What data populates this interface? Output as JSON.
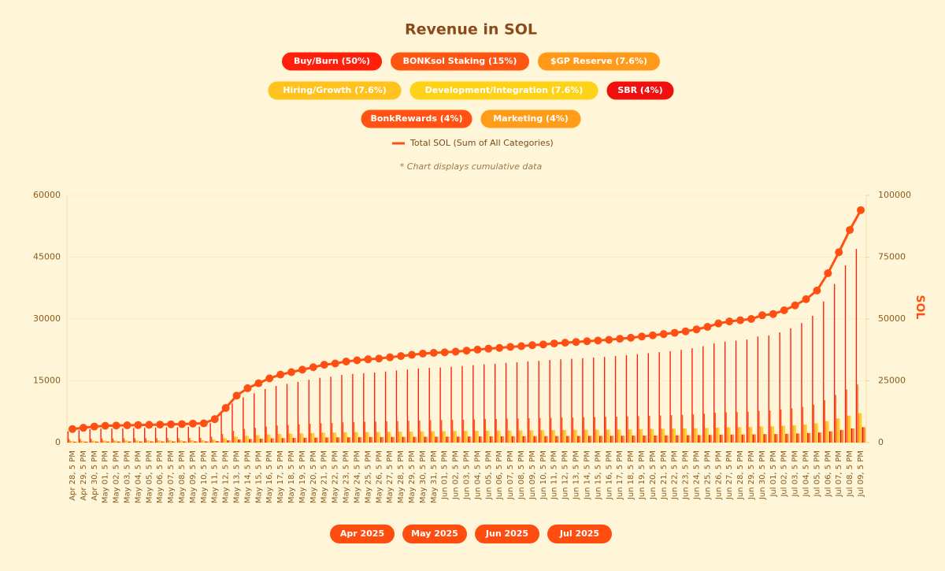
{
  "chart_data": {
    "type": "bar_line",
    "title": "Revenue in SOL",
    "note": "* Chart displays cumulative data",
    "y2label": "SOL",
    "categories": [
      "Apr 28, 5 PM",
      "Apr 29, 5 PM",
      "Apr 30, 5 PM",
      "May 01, 5 PM",
      "May 02, 5 PM",
      "May 03, 5 PM",
      "May 04, 5 PM",
      "May 05, 5 PM",
      "May 06, 5 PM",
      "May 07, 5 PM",
      "May 08, 5 PM",
      "May 09, 5 PM",
      "May 10, 5 PM",
      "May 11, 5 PM",
      "May 12, 5 PM",
      "May 13, 5 PM",
      "May 14, 5 PM",
      "May 15, 5 PM",
      "May 16, 5 PM",
      "May 17, 5 PM",
      "May 18, 5 PM",
      "May 19, 5 PM",
      "May 20, 5 PM",
      "May 21, 5 PM",
      "May 22, 5 PM",
      "May 23, 5 PM",
      "May 24, 5 PM",
      "May 25, 5 PM",
      "May 26, 5 PM",
      "May 27, 5 PM",
      "May 28, 5 PM",
      "May 29, 5 PM",
      "May 30, 5 PM",
      "May 31, 5 PM",
      "Jun 01, 5 PM",
      "Jun 02, 5 PM",
      "Jun 03, 5 PM",
      "Jun 04, 5 PM",
      "Jun 05, 5 PM",
      "Jun 06, 5 PM",
      "Jun 07, 5 PM",
      "Jun 08, 5 PM",
      "Jun 09, 5 PM",
      "Jun 10, 5 PM",
      "Jun 11, 5 PM",
      "Jun 12, 5 PM",
      "Jun 13, 5 PM",
      "Jun 14, 5 PM",
      "Jun 15, 5 PM",
      "Jun 16, 5 PM",
      "Jun 17, 5 PM",
      "Jun 18, 5 PM",
      "Jun 19, 5 PM",
      "Jun 20, 5 PM",
      "Jun 21, 5 PM",
      "Jun 22, 5 PM",
      "Jun 23, 5 PM",
      "Jun 24, 5 PM",
      "Jun 25, 5 PM",
      "Jun 26, 5 PM",
      "Jun 27, 5 PM",
      "Jun 28, 5 PM",
      "Jun 29, 5 PM",
      "Jun 30, 5 PM",
      "Jul 01, 5 PM",
      "Jul 02, 5 PM",
      "Jul 03, 5 PM",
      "Jul 04, 5 PM",
      "Jul 05, 5 PM",
      "Jul 06, 5 PM",
      "Jul 07, 5 PM",
      "Jul 08, 5 PM",
      "Jul 09, 5 PM"
    ],
    "series": [
      {
        "name": "Buy/Burn (50%)",
        "color": "#ff1f0a",
        "values": [
          2750,
          3000,
          3250,
          3400,
          3450,
          3500,
          3550,
          3600,
          3650,
          3700,
          3750,
          3850,
          3900,
          4750,
          7000,
          9500,
          11000,
          12000,
          13000,
          13750,
          14250,
          14750,
          15250,
          15750,
          16000,
          16400,
          16650,
          16850,
          17000,
          17250,
          17500,
          17750,
          18000,
          18150,
          18250,
          18400,
          18600,
          18800,
          19000,
          19150,
          19350,
          19500,
          19700,
          19850,
          20050,
          20200,
          20350,
          20500,
          20650,
          20800,
          21000,
          21200,
          21450,
          21700,
          21950,
          22200,
          22500,
          22900,
          23400,
          24100,
          24500,
          24750,
          25000,
          25750,
          26000,
          26750,
          27750,
          29000,
          30750,
          34250,
          38500,
          43000,
          47000
        ]
      },
      {
        "name": "BONKsol Staking (15%)",
        "color": "#ff5514",
        "values": [
          825,
          900,
          975,
          1020,
          1035,
          1050,
          1065,
          1080,
          1095,
          1110,
          1125,
          1155,
          1170,
          1425,
          2100,
          2850,
          3300,
          3600,
          3900,
          4125,
          4275,
          4425,
          4575,
          4725,
          4800,
          4920,
          4995,
          5055,
          5100,
          5175,
          5250,
          5325,
          5400,
          5445,
          5475,
          5520,
          5580,
          5640,
          5700,
          5745,
          5805,
          5850,
          5910,
          5955,
          6015,
          6060,
          6105,
          6150,
          6195,
          6240,
          6300,
          6360,
          6435,
          6510,
          6585,
          6660,
          6750,
          6870,
          7020,
          7230,
          7350,
          7425,
          7500,
          7725,
          7800,
          8025,
          8325,
          8700,
          9225,
          10275,
          11550,
          12900,
          14100
        ]
      },
      {
        "name": "$GP Reserve (7.6%)",
        "color": "#ff9a1a",
        "values": [
          420,
          460,
          490,
          520,
          520,
          530,
          540,
          550,
          550,
          560,
          570,
          590,
          590,
          720,
          1060,
          1440,
          1670,
          1820,
          1980,
          2090,
          2170,
          2240,
          2320,
          2390,
          2430,
          2490,
          2530,
          2560,
          2580,
          2620,
          2660,
          2700,
          2740,
          2760,
          2770,
          2800,
          2830,
          2860,
          2890,
          2910,
          2940,
          2960,
          2990,
          3020,
          3050,
          3070,
          3090,
          3120,
          3140,
          3160,
          3190,
          3220,
          3260,
          3300,
          3340,
          3370,
          3420,
          3480,
          3560,
          3660,
          3720,
          3760,
          3800,
          3910,
          3950,
          4070,
          4220,
          4410,
          4670,
          5210,
          5850,
          6540,
          7140
        ]
      },
      {
        "name": "Hiring/Growth (7.6%)",
        "color": "#ffc21f",
        "values": [
          420,
          460,
          490,
          520,
          520,
          530,
          540,
          550,
          550,
          560,
          570,
          590,
          590,
          720,
          1060,
          1440,
          1670,
          1820,
          1980,
          2090,
          2170,
          2240,
          2320,
          2390,
          2430,
          2490,
          2530,
          2560,
          2580,
          2620,
          2660,
          2700,
          2740,
          2760,
          2770,
          2800,
          2830,
          2860,
          2890,
          2910,
          2940,
          2960,
          2990,
          3020,
          3050,
          3070,
          3090,
          3120,
          3140,
          3160,
          3190,
          3220,
          3260,
          3300,
          3340,
          3370,
          3420,
          3480,
          3560,
          3660,
          3720,
          3760,
          3800,
          3910,
          3950,
          4070,
          4220,
          4410,
          4670,
          5210,
          5850,
          6540,
          7140
        ]
      },
      {
        "name": "Development/Integration (7.6%)",
        "color": "#ffd21a",
        "values": [
          420,
          460,
          490,
          520,
          520,
          530,
          540,
          550,
          550,
          560,
          570,
          590,
          590,
          720,
          1060,
          1440,
          1670,
          1820,
          1980,
          2090,
          2170,
          2240,
          2320,
          2390,
          2430,
          2490,
          2530,
          2560,
          2580,
          2620,
          2660,
          2700,
          2740,
          2760,
          2770,
          2800,
          2830,
          2860,
          2890,
          2910,
          2940,
          2960,
          2990,
          3020,
          3050,
          3070,
          3090,
          3120,
          3140,
          3160,
          3190,
          3220,
          3260,
          3300,
          3340,
          3370,
          3420,
          3480,
          3560,
          3660,
          3720,
          3760,
          3800,
          3910,
          3950,
          4070,
          4220,
          4410,
          4670,
          5210,
          5850,
          6540,
          7140
        ]
      },
      {
        "name": "SBR (4%)",
        "color": "#f01010",
        "values": [
          220,
          240,
          260,
          270,
          280,
          280,
          280,
          290,
          290,
          300,
          300,
          310,
          310,
          380,
          560,
          760,
          880,
          960,
          1040,
          1100,
          1140,
          1180,
          1220,
          1260,
          1280,
          1310,
          1330,
          1350,
          1360,
          1380,
          1400,
          1420,
          1440,
          1450,
          1460,
          1470,
          1490,
          1500,
          1520,
          1530,
          1550,
          1560,
          1580,
          1590,
          1600,
          1620,
          1630,
          1640,
          1650,
          1660,
          1680,
          1700,
          1720,
          1740,
          1760,
          1780,
          1800,
          1830,
          1870,
          1930,
          1960,
          1980,
          2000,
          2060,
          2080,
          2140,
          2220,
          2320,
          2460,
          2740,
          3080,
          3440,
          3760
        ]
      },
      {
        "name": "BonkRewards (4%)",
        "color": "#ff5214",
        "values": [
          220,
          240,
          260,
          270,
          280,
          280,
          280,
          290,
          290,
          300,
          300,
          310,
          310,
          380,
          560,
          760,
          880,
          960,
          1040,
          1100,
          1140,
          1180,
          1220,
          1260,
          1280,
          1310,
          1330,
          1350,
          1360,
          1380,
          1400,
          1420,
          1440,
          1450,
          1460,
          1470,
          1490,
          1500,
          1520,
          1530,
          1550,
          1560,
          1580,
          1590,
          1600,
          1620,
          1630,
          1640,
          1650,
          1660,
          1680,
          1700,
          1720,
          1740,
          1760,
          1780,
          1800,
          1830,
          1870,
          1930,
          1960,
          1980,
          2000,
          2060,
          2080,
          2140,
          2220,
          2320,
          2460,
          2740,
          3080,
          3440,
          3760
        ]
      },
      {
        "name": "Marketing (4%)",
        "color": "#ff9c1a",
        "values": [
          220,
          240,
          260,
          270,
          280,
          280,
          280,
          290,
          290,
          300,
          300,
          310,
          310,
          380,
          560,
          760,
          880,
          960,
          1040,
          1100,
          1140,
          1180,
          1220,
          1260,
          1280,
          1310,
          1330,
          1350,
          1360,
          1380,
          1400,
          1420,
          1440,
          1450,
          1460,
          1470,
          1490,
          1500,
          1520,
          1530,
          1550,
          1560,
          1580,
          1590,
          1600,
          1620,
          1630,
          1640,
          1650,
          1660,
          1680,
          1700,
          1720,
          1740,
          1760,
          1780,
          1800,
          1830,
          1870,
          1930,
          1960,
          1980,
          2000,
          2060,
          2080,
          2140,
          2220,
          2320,
          2460,
          2740,
          3080,
          3440,
          3760
        ]
      },
      {
        "name": "Total SOL (Sum of All Categories)",
        "color": "#ff5014",
        "axis": "y2",
        "type": "line",
        "values": [
          5500,
          6000,
          6500,
          6800,
          6900,
          7000,
          7100,
          7200,
          7300,
          7400,
          7500,
          7700,
          7800,
          9500,
          14000,
          19000,
          22000,
          24000,
          26000,
          27500,
          28500,
          29500,
          30500,
          31500,
          32000,
          32800,
          33300,
          33700,
          34000,
          34500,
          35000,
          35500,
          36000,
          36300,
          36500,
          36800,
          37200,
          37600,
          38000,
          38300,
          38700,
          39000,
          39400,
          39700,
          40100,
          40400,
          40700,
          41000,
          41300,
          41600,
          42000,
          42400,
          42900,
          43400,
          43900,
          44400,
          45000,
          45800,
          46800,
          48200,
          49000,
          49500,
          50000,
          51500,
          52000,
          53500,
          55500,
          58000,
          61500,
          68500,
          77000,
          86000,
          94000
        ]
      }
    ],
    "ylim": [
      0,
      60000
    ],
    "yticks": [
      0,
      15000,
      30000,
      45000,
      60000
    ],
    "y2lim": [
      0,
      100000
    ],
    "y2ticks": [
      0,
      25000,
      50000,
      75000,
      100000
    ],
    "grid": true,
    "month_buttons": [
      "Apr 2025",
      "May 2025",
      "Jun 2025",
      "Jul 2025"
    ]
  }
}
